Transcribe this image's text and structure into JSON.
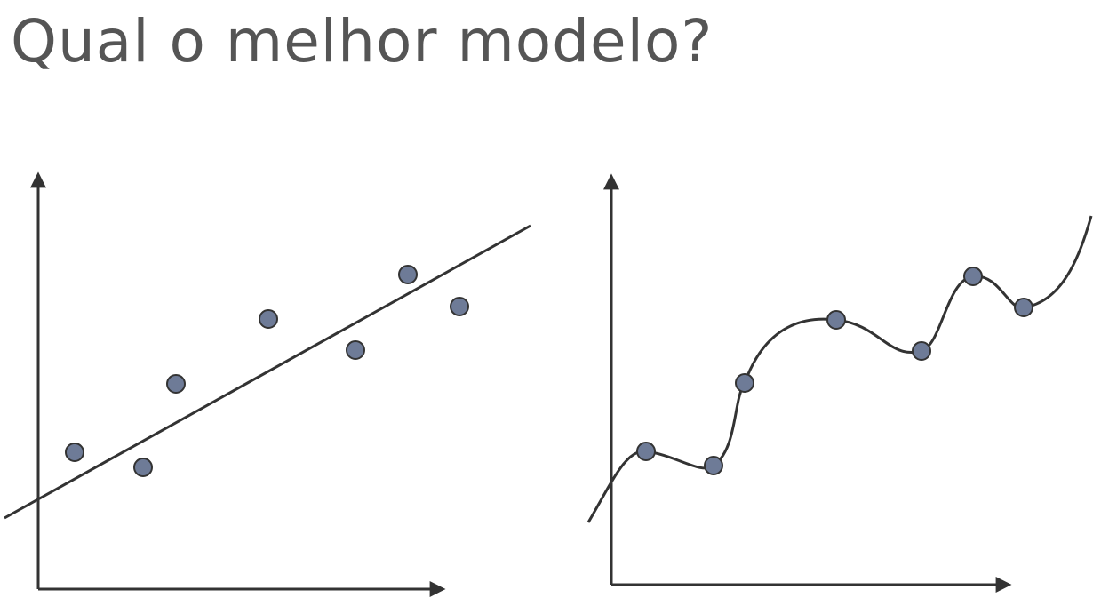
{
  "title": "Qual o melhor modelo?"
}
